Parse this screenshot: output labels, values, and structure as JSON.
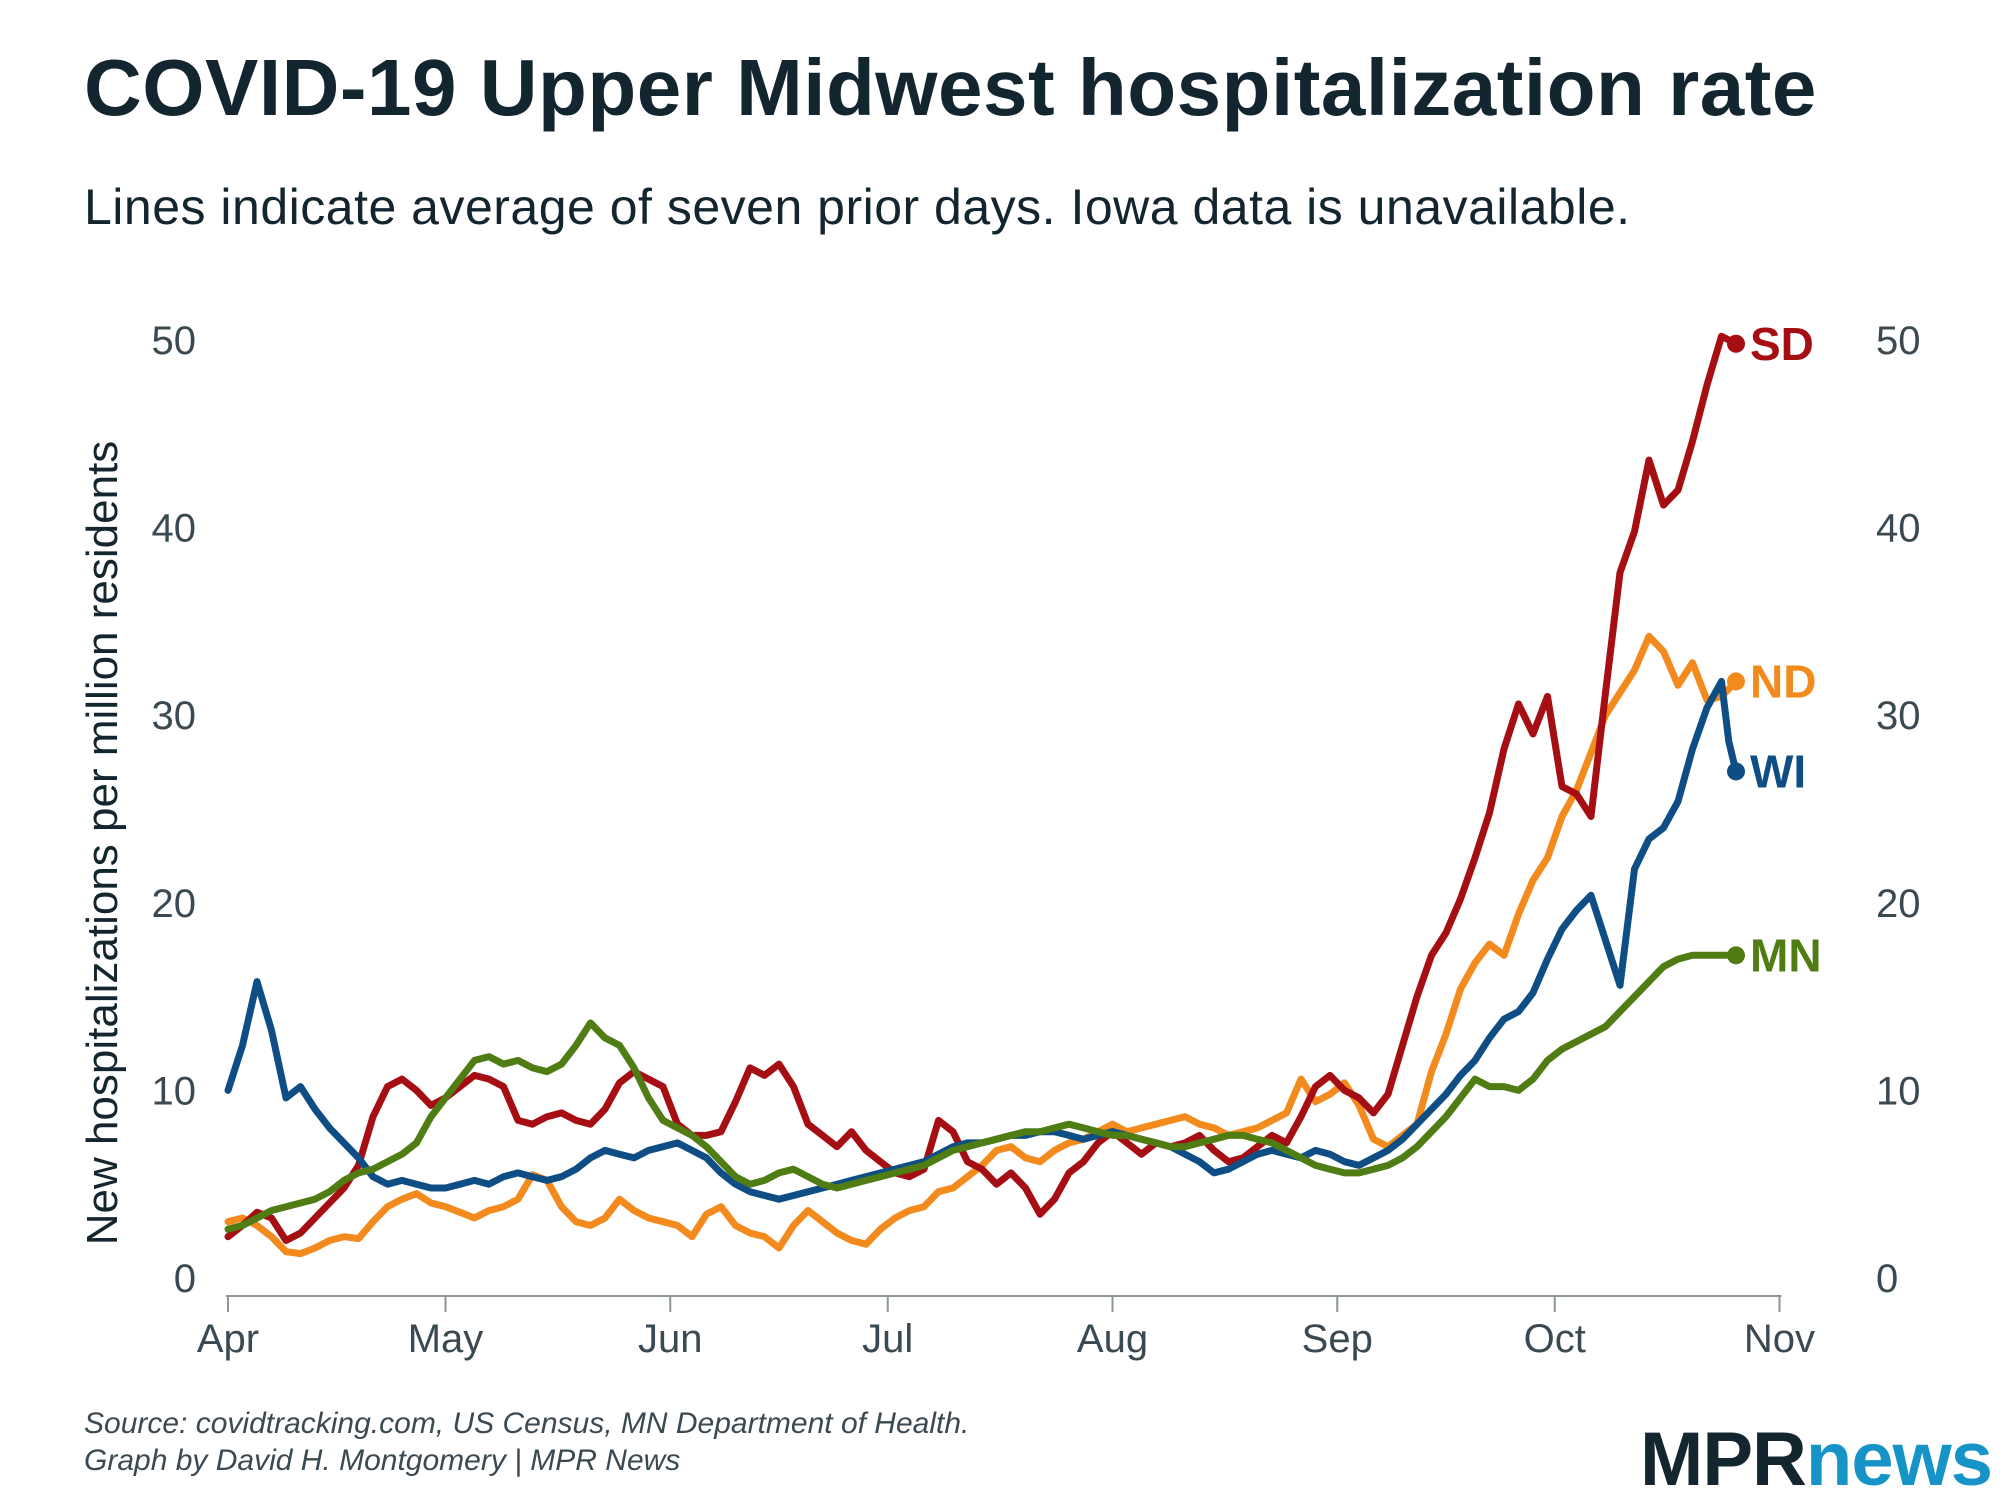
{
  "title": "COVID-19 Upper Midwest hospitalization rate",
  "subtitle": "Lines indicate average of seven prior days. Iowa data is unavailable.",
  "source": {
    "line1": "Source: covidtracking.com, US Census, MN Department of Health.",
    "line2": "Graph by David H. Montgomery | MPR News"
  },
  "logo": {
    "part1": "MPR",
    "part2": "news"
  },
  "chart_data": {
    "type": "line",
    "title": "COVID-19 Upper Midwest hospitalization rate",
    "xlabel": "",
    "ylabel": "New hospitalizations per million residents",
    "ylim": [
      0,
      53
    ],
    "y_ticks": [
      0,
      10,
      20,
      30,
      40,
      50
    ],
    "x_domain_days": [
      0,
      216
    ],
    "x_ticks": [
      {
        "label": "Apr",
        "day": 0
      },
      {
        "label": "May",
        "day": 30
      },
      {
        "label": "Jun",
        "day": 61
      },
      {
        "label": "Jul",
        "day": 91
      },
      {
        "label": "Aug",
        "day": 122
      },
      {
        "label": "Sep",
        "day": 153
      },
      {
        "label": "Oct",
        "day": 183
      },
      {
        "label": "Nov",
        "day": 214
      }
    ],
    "grid": false,
    "series": [
      {
        "name": "ND",
        "color": "#f28a1e",
        "x": [
          0,
          2,
          4,
          6,
          8,
          10,
          12,
          14,
          16,
          18,
          20,
          22,
          24,
          26,
          28,
          30,
          32,
          34,
          36,
          38,
          40,
          42,
          44,
          46,
          48,
          50,
          52,
          54,
          56,
          58,
          60,
          62,
          64,
          66,
          68,
          70,
          72,
          74,
          76,
          78,
          80,
          82,
          84,
          86,
          88,
          90,
          92,
          94,
          96,
          98,
          100,
          102,
          104,
          106,
          108,
          110,
          112,
          114,
          116,
          118,
          120,
          122,
          124,
          126,
          128,
          130,
          132,
          134,
          136,
          138,
          140,
          142,
          144,
          146,
          148,
          150,
          152,
          154,
          156,
          158,
          160,
          162,
          164,
          166,
          168,
          170,
          172,
          174,
          176,
          178,
          180,
          182,
          184,
          186,
          188,
          190,
          192,
          194,
          196,
          198,
          200,
          202,
          204,
          206,
          208
        ],
        "values": [
          3,
          3.2,
          2.8,
          2.2,
          1.4,
          1.3,
          1.6,
          2.0,
          2.2,
          2.1,
          3.0,
          3.8,
          4.2,
          4.5,
          4.0,
          3.8,
          3.5,
          3.2,
          3.6,
          3.8,
          4.2,
          5.5,
          5.2,
          3.8,
          3.0,
          2.8,
          3.2,
          4.2,
          3.6,
          3.2,
          3.0,
          2.8,
          2.2,
          3.4,
          3.8,
          2.8,
          2.4,
          2.2,
          1.6,
          2.8,
          3.6,
          3.0,
          2.4,
          2.0,
          1.8,
          2.6,
          3.2,
          3.6,
          3.8,
          4.6,
          4.8,
          5.4,
          6.0,
          6.8,
          7.0,
          6.4,
          6.2,
          6.8,
          7.2,
          7.4,
          7.8,
          8.2,
          7.8,
          8.0,
          8.2,
          8.4,
          8.6,
          8.2,
          8.0,
          7.6,
          7.8,
          8.0,
          8.4,
          8.8,
          10.6,
          9.4,
          9.8,
          10.4,
          9.2,
          7.4,
          7.0,
          7.6,
          8.2,
          11.0,
          13.0,
          15.4,
          16.8,
          17.8,
          17.2,
          19.4,
          21.2,
          22.4,
          24.6,
          26.0,
          28.0,
          30.0,
          31.2,
          32.4,
          34.2,
          33.4,
          31.6,
          32.8,
          30.8,
          31.0,
          31.8
        ]
      },
      {
        "name": "SD",
        "color": "#a50f14",
        "x": [
          0,
          2,
          4,
          6,
          8,
          10,
          12,
          14,
          16,
          18,
          20,
          22,
          24,
          26,
          28,
          30,
          32,
          34,
          36,
          38,
          40,
          42,
          44,
          46,
          48,
          50,
          52,
          54,
          56,
          58,
          60,
          62,
          64,
          66,
          68,
          70,
          72,
          74,
          76,
          78,
          80,
          82,
          84,
          86,
          88,
          90,
          92,
          94,
          96,
          98,
          100,
          102,
          104,
          106,
          108,
          110,
          112,
          114,
          116,
          118,
          120,
          122,
          124,
          126,
          128,
          130,
          132,
          134,
          136,
          138,
          140,
          142,
          144,
          146,
          148,
          150,
          152,
          154,
          156,
          158,
          160,
          162,
          164,
          166,
          168,
          170,
          172,
          174,
          176,
          178,
          180,
          182,
          184,
          186,
          188,
          190,
          192,
          194,
          196,
          198,
          200,
          202,
          204,
          206,
          208
        ],
        "values": [
          2.2,
          2.8,
          3.5,
          3.2,
          2.0,
          2.4,
          3.2,
          4.0,
          4.8,
          6.0,
          8.6,
          10.2,
          10.6,
          10.0,
          9.2,
          9.6,
          10.2,
          10.8,
          10.6,
          10.2,
          8.4,
          8.2,
          8.6,
          8.8,
          8.4,
          8.2,
          9.0,
          10.4,
          11.0,
          10.6,
          10.2,
          8.2,
          7.6,
          7.6,
          7.8,
          9.4,
          11.2,
          10.8,
          11.4,
          10.2,
          8.2,
          7.6,
          7.0,
          7.8,
          6.8,
          6.2,
          5.6,
          5.4,
          5.8,
          8.4,
          7.8,
          6.2,
          5.8,
          5.0,
          5.6,
          4.8,
          3.4,
          4.2,
          5.6,
          6.2,
          7.2,
          7.8,
          7.2,
          6.6,
          7.2,
          7.0,
          7.2,
          7.6,
          6.8,
          6.2,
          6.4,
          7.0,
          7.6,
          7.2,
          8.6,
          10.2,
          10.8,
          10.0,
          9.6,
          8.8,
          9.8,
          12.4,
          15.0,
          17.2,
          18.4,
          20.2,
          22.4,
          24.8,
          28.2,
          30.6,
          29.0,
          31.0,
          26.2,
          25.8,
          24.6,
          31.2,
          37.6,
          39.8,
          43.6,
          41.2,
          42.0,
          44.6,
          47.6,
          50.2,
          49.8
        ]
      },
      {
        "name": "WI",
        "color": "#0e4e85",
        "x": [
          0,
          2,
          4,
          6,
          8,
          10,
          12,
          14,
          16,
          18,
          20,
          22,
          24,
          26,
          28,
          30,
          32,
          34,
          36,
          38,
          40,
          42,
          44,
          46,
          48,
          50,
          52,
          54,
          56,
          58,
          60,
          62,
          64,
          66,
          68,
          70,
          72,
          74,
          76,
          78,
          80,
          82,
          84,
          86,
          88,
          90,
          92,
          94,
          96,
          98,
          100,
          102,
          104,
          106,
          108,
          110,
          112,
          114,
          116,
          118,
          120,
          122,
          124,
          126,
          128,
          130,
          132,
          134,
          136,
          138,
          140,
          142,
          144,
          146,
          148,
          150,
          152,
          154,
          156,
          158,
          160,
          162,
          164,
          166,
          168,
          170,
          172,
          174,
          176,
          178,
          180,
          182,
          184,
          186,
          188,
          190,
          192,
          194,
          196,
          198,
          200,
          202,
          204,
          206,
          207,
          208
        ],
        "values": [
          10.0,
          12.4,
          15.8,
          13.2,
          9.6,
          10.2,
          9.0,
          8.0,
          7.2,
          6.4,
          5.4,
          5.0,
          5.2,
          5.0,
          4.8,
          4.8,
          5.0,
          5.2,
          5.0,
          5.4,
          5.6,
          5.4,
          5.2,
          5.4,
          5.8,
          6.4,
          6.8,
          6.6,
          6.4,
          6.8,
          7.0,
          7.2,
          6.8,
          6.4,
          5.6,
          5.0,
          4.6,
          4.4,
          4.2,
          4.4,
          4.6,
          4.8,
          5.0,
          5.2,
          5.4,
          5.6,
          5.8,
          6.0,
          6.2,
          6.6,
          7.0,
          7.2,
          7.2,
          7.4,
          7.6,
          7.6,
          7.8,
          7.8,
          7.6,
          7.4,
          7.6,
          7.8,
          7.6,
          7.4,
          7.2,
          7.0,
          6.6,
          6.2,
          5.6,
          5.8,
          6.2,
          6.6,
          6.8,
          6.6,
          6.4,
          6.8,
          6.6,
          6.2,
          6.0,
          6.4,
          6.8,
          7.4,
          8.2,
          9.0,
          9.8,
          10.8,
          11.6,
          12.8,
          13.8,
          14.2,
          15.2,
          17.0,
          18.6,
          19.6,
          20.4,
          18.0,
          15.6,
          21.8,
          23.4,
          24.0,
          25.4,
          28.2,
          30.4,
          31.8,
          28.6,
          27.0
        ]
      },
      {
        "name": "MN",
        "color": "#4f7d14",
        "x": [
          0,
          2,
          4,
          6,
          8,
          10,
          12,
          14,
          16,
          18,
          20,
          22,
          24,
          26,
          28,
          30,
          32,
          34,
          36,
          38,
          40,
          42,
          44,
          46,
          48,
          50,
          52,
          54,
          56,
          58,
          60,
          62,
          64,
          66,
          68,
          70,
          72,
          74,
          76,
          78,
          80,
          82,
          84,
          86,
          88,
          90,
          92,
          94,
          96,
          98,
          100,
          102,
          104,
          106,
          108,
          110,
          112,
          114,
          116,
          118,
          120,
          122,
          124,
          126,
          128,
          130,
          132,
          134,
          136,
          138,
          140,
          142,
          144,
          146,
          148,
          150,
          152,
          154,
          156,
          158,
          160,
          162,
          164,
          166,
          168,
          170,
          172,
          174,
          176,
          178,
          180,
          182,
          184,
          186,
          188,
          190,
          192,
          194,
          196,
          198,
          200,
          202,
          204,
          206,
          208
        ],
        "values": [
          2.6,
          2.8,
          3.2,
          3.6,
          3.8,
          4.0,
          4.2,
          4.6,
          5.2,
          5.6,
          5.8,
          6.2,
          6.6,
          7.2,
          8.6,
          9.6,
          10.6,
          11.6,
          11.8,
          11.4,
          11.6,
          11.2,
          11.0,
          11.4,
          12.4,
          13.6,
          12.8,
          12.4,
          11.2,
          9.6,
          8.4,
          8.0,
          7.6,
          7.0,
          6.2,
          5.4,
          5.0,
          5.2,
          5.6,
          5.8,
          5.4,
          5.0,
          4.8,
          5.0,
          5.2,
          5.4,
          5.6,
          5.8,
          6.0,
          6.4,
          6.8,
          7.0,
          7.2,
          7.4,
          7.6,
          7.8,
          7.8,
          8.0,
          8.2,
          8.0,
          7.8,
          7.6,
          7.6,
          7.4,
          7.2,
          7.0,
          7.0,
          7.2,
          7.4,
          7.6,
          7.6,
          7.4,
          7.2,
          6.8,
          6.4,
          6.0,
          5.8,
          5.6,
          5.6,
          5.8,
          6.0,
          6.4,
          7.0,
          7.8,
          8.6,
          9.6,
          10.6,
          10.2,
          10.2,
          10.0,
          10.6,
          11.6,
          12.2,
          12.6,
          13.0,
          13.4,
          14.2,
          15.0,
          15.8,
          16.6,
          17.0,
          17.2,
          17.2,
          17.2,
          17.2
        ]
      }
    ]
  }
}
